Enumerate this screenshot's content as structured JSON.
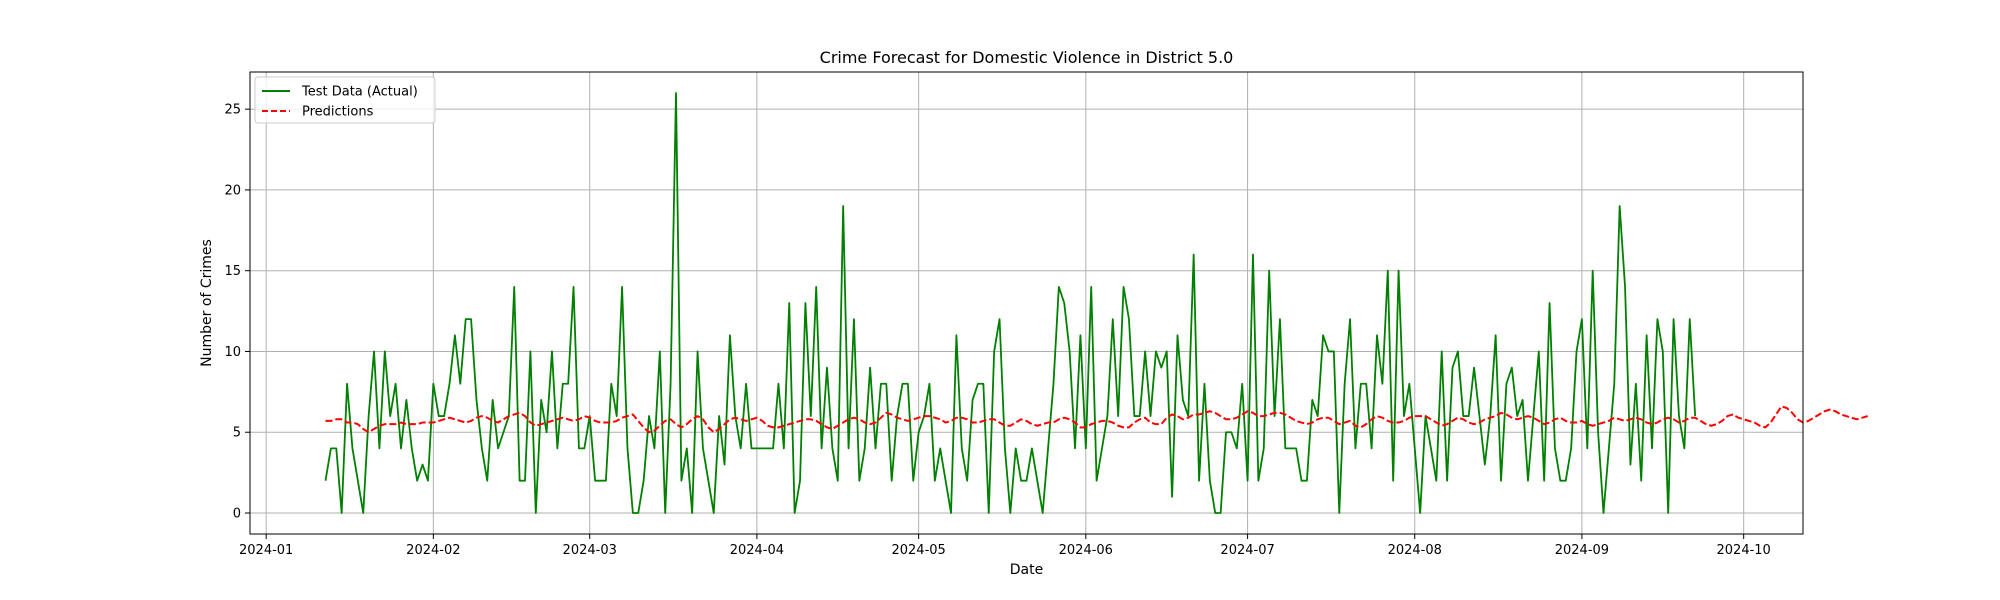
{
  "chart_data": {
    "type": "line",
    "title": "Crime Forecast for Domestic Violence in District 5.0",
    "xlabel": "Date",
    "ylabel": "Number of Crimes",
    "xlim": [
      "2023-12-29",
      "2024-10-12"
    ],
    "ylim": [
      -1.3,
      27.3
    ],
    "x_ticks": [
      "2024-01-01",
      "2024-02-01",
      "2024-03-01",
      "2024-04-01",
      "2024-05-01",
      "2024-06-01",
      "2024-07-01",
      "2024-08-01",
      "2024-09-01",
      "2024-10-01"
    ],
    "x_tick_labels": [
      "2024-01",
      "2024-02",
      "2024-03",
      "2024-04",
      "2024-05",
      "2024-06",
      "2024-07",
      "2024-08",
      "2024-09",
      "2024-10"
    ],
    "y_ticks": [
      0,
      5,
      10,
      15,
      20,
      25
    ],
    "y_tick_labels": [
      "0",
      "5",
      "10",
      "15",
      "20",
      "25"
    ],
    "grid": true,
    "legend_position": "upper-left",
    "start_date": "2024-01-12",
    "series": [
      {
        "name": "Test Data (Actual)",
        "color": "#008000",
        "style": "solid",
        "values": [
          2,
          4,
          4,
          0,
          8,
          4,
          2,
          0,
          6,
          10,
          4,
          10,
          6,
          8,
          4,
          7,
          4,
          2,
          3,
          2,
          8,
          6,
          6,
          8,
          11,
          8,
          12,
          12,
          7,
          4,
          2,
          7,
          4,
          5,
          6,
          14,
          2,
          2,
          10,
          0,
          7,
          5,
          10,
          4,
          8,
          8,
          14,
          4,
          4,
          6,
          2,
          2,
          2,
          8,
          6,
          14,
          4,
          0,
          0,
          2,
          6,
          4,
          10,
          0,
          8,
          26,
          2,
          4,
          0,
          10,
          4,
          2,
          0,
          6,
          3,
          11,
          6,
          4,
          8,
          4,
          4,
          4,
          4,
          4,
          8,
          4,
          13,
          0,
          2,
          13,
          6,
          14,
          4,
          9,
          4,
          2,
          19,
          4,
          12,
          2,
          4,
          9,
          4,
          8,
          8,
          2,
          6,
          8,
          8,
          2,
          5,
          6,
          8,
          2,
          4,
          2,
          0,
          11,
          4,
          2,
          7,
          8,
          8,
          0,
          10,
          12,
          4,
          0,
          4,
          2,
          2,
          4,
          2,
          0,
          4,
          8,
          14,
          13,
          10,
          4,
          11,
          4,
          14,
          2,
          4,
          6,
          12,
          6,
          14,
          12,
          6,
          6,
          10,
          6,
          10,
          9,
          10,
          1,
          11,
          7,
          6,
          16,
          2,
          8,
          2,
          0,
          0,
          5,
          5,
          4,
          8,
          2,
          16,
          2,
          4,
          15,
          6,
          12,
          4,
          4,
          4,
          2,
          2,
          7,
          6,
          11,
          10,
          10,
          0,
          8,
          12,
          4,
          8,
          8,
          4,
          11,
          8,
          15,
          2,
          15,
          6,
          8,
          4,
          0,
          6,
          4,
          2,
          10,
          2,
          9,
          10,
          6,
          6,
          9,
          6,
          3,
          6,
          11,
          2,
          8,
          9,
          6,
          7,
          2,
          6,
          10,
          2,
          13,
          4,
          2,
          2,
          4,
          10,
          12,
          4,
          15,
          5,
          0,
          4,
          8,
          19,
          14,
          3,
          8,
          2,
          11,
          4,
          12,
          10,
          0,
          12,
          6,
          4,
          12,
          6
        ]
      },
      {
        "name": "Predictions",
        "color": "#ff0000",
        "style": "dashed",
        "values": [
          5.7,
          5.7,
          5.8,
          5.8,
          5.6,
          5.6,
          5.5,
          5.2,
          5.0,
          5.2,
          5.4,
          5.5,
          5.5,
          5.5,
          5.6,
          5.5,
          5.5,
          5.5,
          5.6,
          5.6,
          5.6,
          5.7,
          5.8,
          5.9,
          5.8,
          5.7,
          5.6,
          5.7,
          5.9,
          6.0,
          5.9,
          5.7,
          5.6,
          5.8,
          6.0,
          6.1,
          6.2,
          6.0,
          5.6,
          5.4,
          5.5,
          5.6,
          5.7,
          5.8,
          5.9,
          5.8,
          5.7,
          5.8,
          6.0,
          5.9,
          5.7,
          5.6,
          5.6,
          5.6,
          5.7,
          5.9,
          6.0,
          6.1,
          5.7,
          5.3,
          5.0,
          5.1,
          5.4,
          5.7,
          5.8,
          5.5,
          5.3,
          5.5,
          5.8,
          6.0,
          5.8,
          5.3,
          5.0,
          5.2,
          5.5,
          5.8,
          5.9,
          5.8,
          5.7,
          5.8,
          5.9,
          5.7,
          5.4,
          5.3,
          5.3,
          5.4,
          5.5,
          5.6,
          5.7,
          5.8,
          5.8,
          5.7,
          5.5,
          5.3,
          5.2,
          5.4,
          5.6,
          5.8,
          5.9,
          5.8,
          5.6,
          5.5,
          5.6,
          5.9,
          6.2,
          6.1,
          5.9,
          5.8,
          5.7,
          5.8,
          5.9,
          6.0,
          6.0,
          5.9,
          5.8,
          5.6,
          5.7,
          5.9,
          5.9,
          5.8,
          5.6,
          5.6,
          5.7,
          5.8,
          5.8,
          5.6,
          5.4,
          5.4,
          5.6,
          5.8,
          5.7,
          5.5,
          5.4,
          5.5,
          5.6,
          5.6,
          5.8,
          5.9,
          5.8,
          5.6,
          5.3,
          5.3,
          5.5,
          5.6,
          5.7,
          5.7,
          5.6,
          5.4,
          5.3,
          5.3,
          5.6,
          5.8,
          5.9,
          5.6,
          5.5,
          5.5,
          5.9,
          6.1,
          6.0,
          5.8,
          5.9,
          6.1,
          6.1,
          6.2,
          6.3,
          6.2,
          6.0,
          5.8,
          5.8,
          5.9,
          6.1,
          6.3,
          6.2,
          6.0,
          6.0,
          6.1,
          6.2,
          6.2,
          6.1,
          5.9,
          5.7,
          5.6,
          5.5,
          5.6,
          5.8,
          5.9,
          5.9,
          5.7,
          5.5,
          5.6,
          5.7,
          5.4,
          5.3,
          5.5,
          5.8,
          6.0,
          5.9,
          5.7,
          5.6,
          5.6,
          5.7,
          5.9,
          6.0,
          6.0,
          6.0,
          5.8,
          5.6,
          5.4,
          5.5,
          5.7,
          5.9,
          5.8,
          5.6,
          5.5,
          5.6,
          5.8,
          5.9,
          6.0,
          6.2,
          6.1,
          5.9,
          5.8,
          5.9,
          6.0,
          5.9,
          5.7,
          5.5,
          5.6,
          5.8,
          5.9,
          5.7,
          5.6,
          5.6,
          5.7,
          5.5,
          5.4,
          5.5,
          5.6,
          5.7,
          5.9,
          5.8,
          5.7,
          5.8,
          5.9,
          5.8,
          5.6,
          5.5,
          5.6,
          5.8,
          5.9,
          5.8,
          5.6,
          5.7,
          5.9,
          5.9,
          5.7,
          5.5,
          5.4,
          5.5,
          5.7,
          6.0,
          6.1,
          5.9,
          5.8,
          5.7,
          5.6,
          5.4,
          5.3,
          5.6,
          6.1,
          6.6,
          6.5,
          6.2,
          5.8,
          5.6,
          5.7,
          5.9,
          6.1,
          6.3,
          6.4,
          6.3,
          6.1,
          6.0,
          5.9,
          5.8,
          5.9,
          6.0
        ]
      }
    ]
  }
}
